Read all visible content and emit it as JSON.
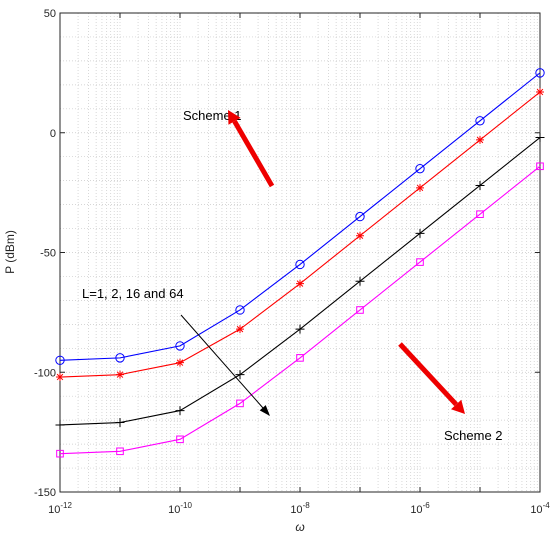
{
  "chart_data": {
    "type": "line",
    "xlabel": "ω",
    "ylabel": "P (dBm)",
    "x_scale": "log",
    "xlim": [
      1e-12,
      0.0001
    ],
    "ylim": [
      -150,
      50
    ],
    "grid": true,
    "x_tick_labels": [
      "10^-12",
      "10^-10",
      "10^-8",
      "10^-6",
      "10^-4"
    ],
    "y_tick_labels": [
      "50",
      "0",
      "-50",
      "-100",
      "-150"
    ],
    "y_ticks": [
      50,
      0,
      -50,
      -100,
      -150
    ],
    "x": [
      1e-12,
      1e-11,
      1e-10,
      1e-09,
      1e-08,
      1e-07,
      1e-06,
      1e-05,
      0.0001
    ],
    "series": [
      {
        "color": "#0000ff",
        "marker": "circle",
        "values": [
          -95,
          -94,
          -89,
          -74,
          -55,
          -35,
          -15,
          5,
          25
        ]
      },
      {
        "color": "#ff0000",
        "marker": "asterisk",
        "values": [
          -102,
          -101,
          -96,
          -82,
          -63,
          -43,
          -23,
          -3,
          17
        ]
      },
      {
        "color": "#000000",
        "marker": "plus",
        "values": [
          -122,
          -121,
          -116,
          -101,
          -82,
          -62,
          -42,
          -22,
          -2
        ]
      },
      {
        "color": "#ff00ff",
        "marker": "square",
        "values": [
          -134,
          -133,
          -128,
          -113,
          -94,
          -74,
          -54,
          -34,
          -14
        ]
      }
    ],
    "annotations": [
      {
        "text": "Scheme 1"
      },
      {
        "text": "Scheme 2"
      },
      {
        "text": "L=1, 2, 16 and 64"
      }
    ],
    "arrow_color": "#ee0000"
  }
}
